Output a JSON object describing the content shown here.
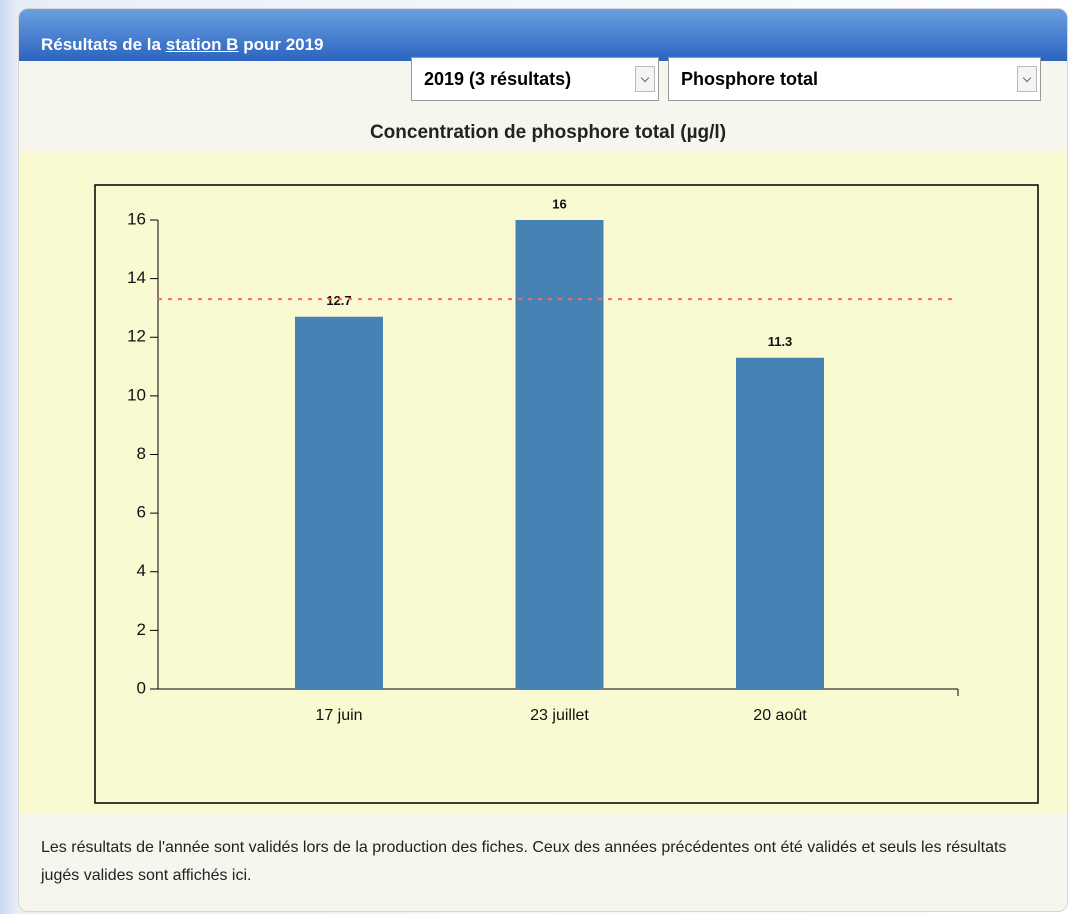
{
  "header": {
    "title_prefix": "Résultats de la",
    "link": "station B",
    "title_suffix": "pour 2019"
  },
  "controls": {
    "year": "2019 (3 résultats)",
    "parameter": "Phosphore total"
  },
  "chart_data": {
    "type": "bar",
    "title": "Concentration de phosphore total (µg/l)",
    "categories": [
      "17 juin",
      "23 juillet",
      "20 août"
    ],
    "values": [
      12.7,
      16,
      11.3
    ],
    "color": "#4682b4",
    "ylim": [
      0,
      16
    ],
    "yticks": [
      0,
      2,
      4,
      6,
      8,
      10,
      12,
      14,
      16
    ],
    "reference_line": {
      "value": 13.3,
      "color": "#ff6666"
    }
  },
  "note": "Les résultats de l'année sont validés lors de la production des fiches. Ceux des années précédentes ont été validés et seuls les résultats jugés valides sont affichés ici."
}
